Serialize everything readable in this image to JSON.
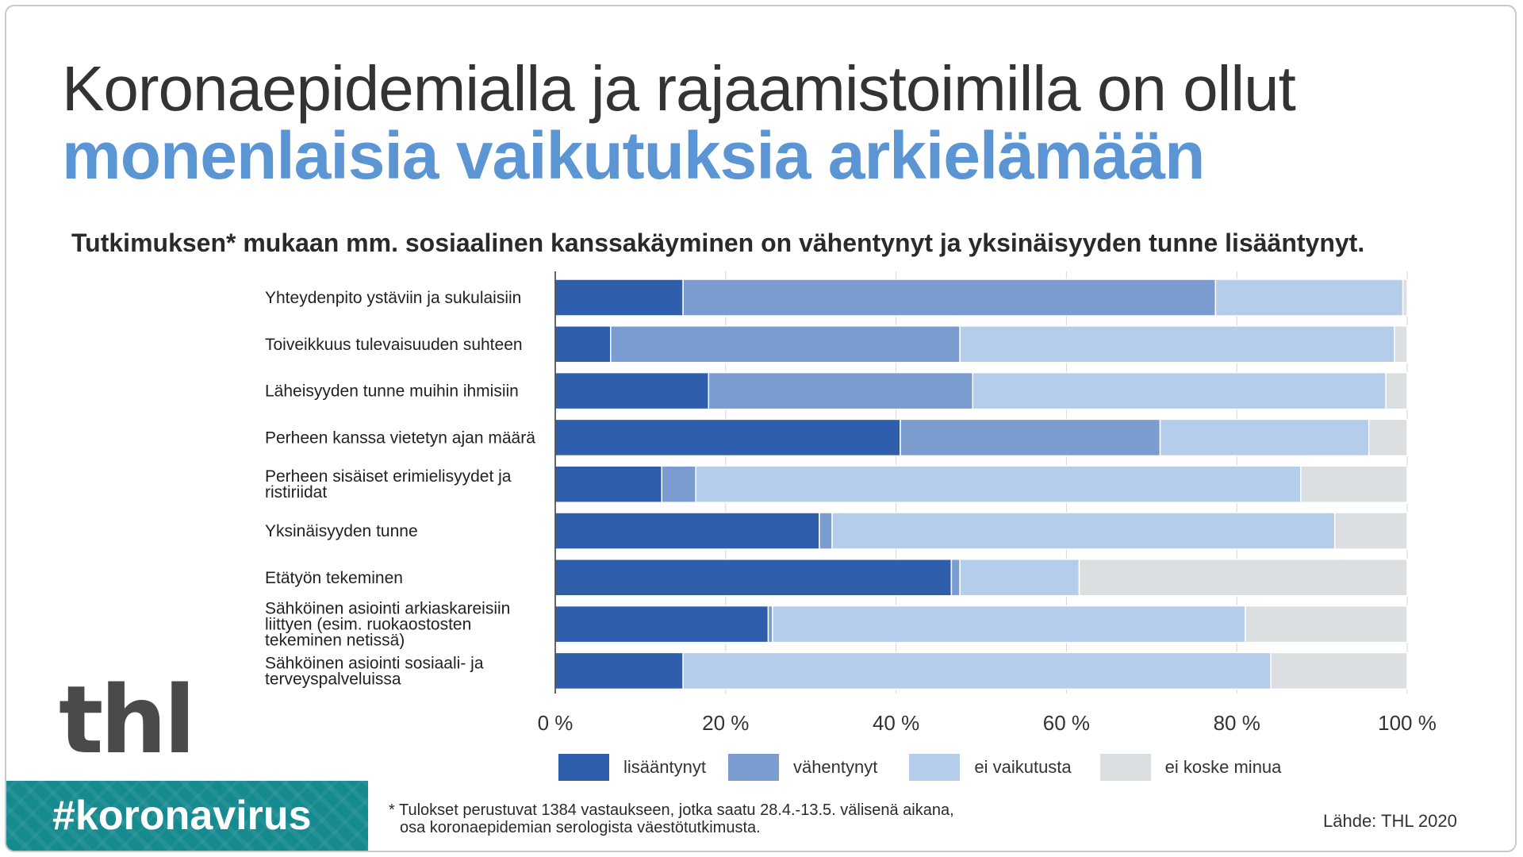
{
  "header": {
    "title_line1": "Koronaepidemialla ja rajaamistoimilla on ollut",
    "title_line2": "monenlaisia vaikutuksia arkielämään",
    "subtitle": "Tutkimuksen* mukaan mm. sosiaalinen kanssakäyminen on vähentynyt ja yksinäisyyden tunne lisääntynyt."
  },
  "brand": {
    "logo_text": "thl",
    "hashtag": "#koronavirus",
    "teal_color": "#158a8f"
  },
  "footer": {
    "footnote_line1": "* Tulokset perustuvat 1384 vastaukseen, jotka saatu 28.4.-13.5. välisenä aikana,",
    "footnote_line2": "osa koronaepidemian serologista väestötutkimusta.",
    "source": "Lähde: THL 2020"
  },
  "chart_data": {
    "type": "bar",
    "orientation": "horizontal",
    "stacked": true,
    "categories": [
      "Yhteydenpito ystäviin ja sukulaisiin",
      "Toiveikkuus tulevaisuuden suhteen",
      "Läheisyyden tunne muihin ihmisiin",
      "Perheen kanssa vietetyn ajan määrä",
      "Perheen sisäiset erimielisyydet ja ristiriidat",
      "Yksinäisyyden tunne",
      "Etätyön tekeminen",
      "Sähköinen asiointi arkiaskareisiin liittyen (esim. ruokaostosten tekeminen netissä)",
      "Sähköinen asiointi sosiaali- ja terveyspalveluissa"
    ],
    "category_lines": [
      [
        "Yhteydenpito ystäviin ja sukulaisiin"
      ],
      [
        "Toiveikkuus tulevaisuuden suhteen"
      ],
      [
        "Läheisyyden tunne muihin ihmisiin"
      ],
      [
        "Perheen kanssa vietetyn ajan määrä"
      ],
      [
        "Perheen sisäiset erimielisyydet ja",
        "ristiriidat"
      ],
      [
        "Yksinäisyyden tunne"
      ],
      [
        "Etätyön tekeminen"
      ],
      [
        "Sähköinen asiointi arkiaskareisiin",
        "liittyen (esim. ruokaostosten",
        "tekeminen netissä)"
      ],
      [
        "Sähköinen asiointi sosiaali- ja",
        "terveyspalveluissa"
      ]
    ],
    "series": [
      {
        "name": "lisääntynyt",
        "color": "#2f5fac",
        "values": [
          15,
          6.5,
          18,
          40.5,
          12.5,
          31,
          46.5,
          25,
          15
        ]
      },
      {
        "name": "vähentynyt",
        "color": "#7a9ccf",
        "values": [
          62.5,
          41,
          31,
          30.5,
          4,
          1.5,
          1,
          0.5,
          0
        ]
      },
      {
        "name": "ei vaikutusta",
        "color": "#b3cdea",
        "values": [
          22,
          51,
          48.5,
          24.5,
          71,
          59,
          14,
          55.5,
          69
        ]
      },
      {
        "name": "ei koske minua",
        "color": "#dcdfe2",
        "values": [
          0.5,
          1.5,
          2.5,
          4.5,
          12.5,
          8.5,
          38.5,
          19,
          16
        ]
      }
    ],
    "x_ticks": [
      "0 %",
      "20 %",
      "40 %",
      "60 %",
      "80 %",
      "100 %"
    ],
    "x_tick_values": [
      0,
      20,
      40,
      60,
      80,
      100
    ],
    "xlim": [
      0,
      100
    ],
    "grid": true,
    "legend_position": "bottom"
  }
}
